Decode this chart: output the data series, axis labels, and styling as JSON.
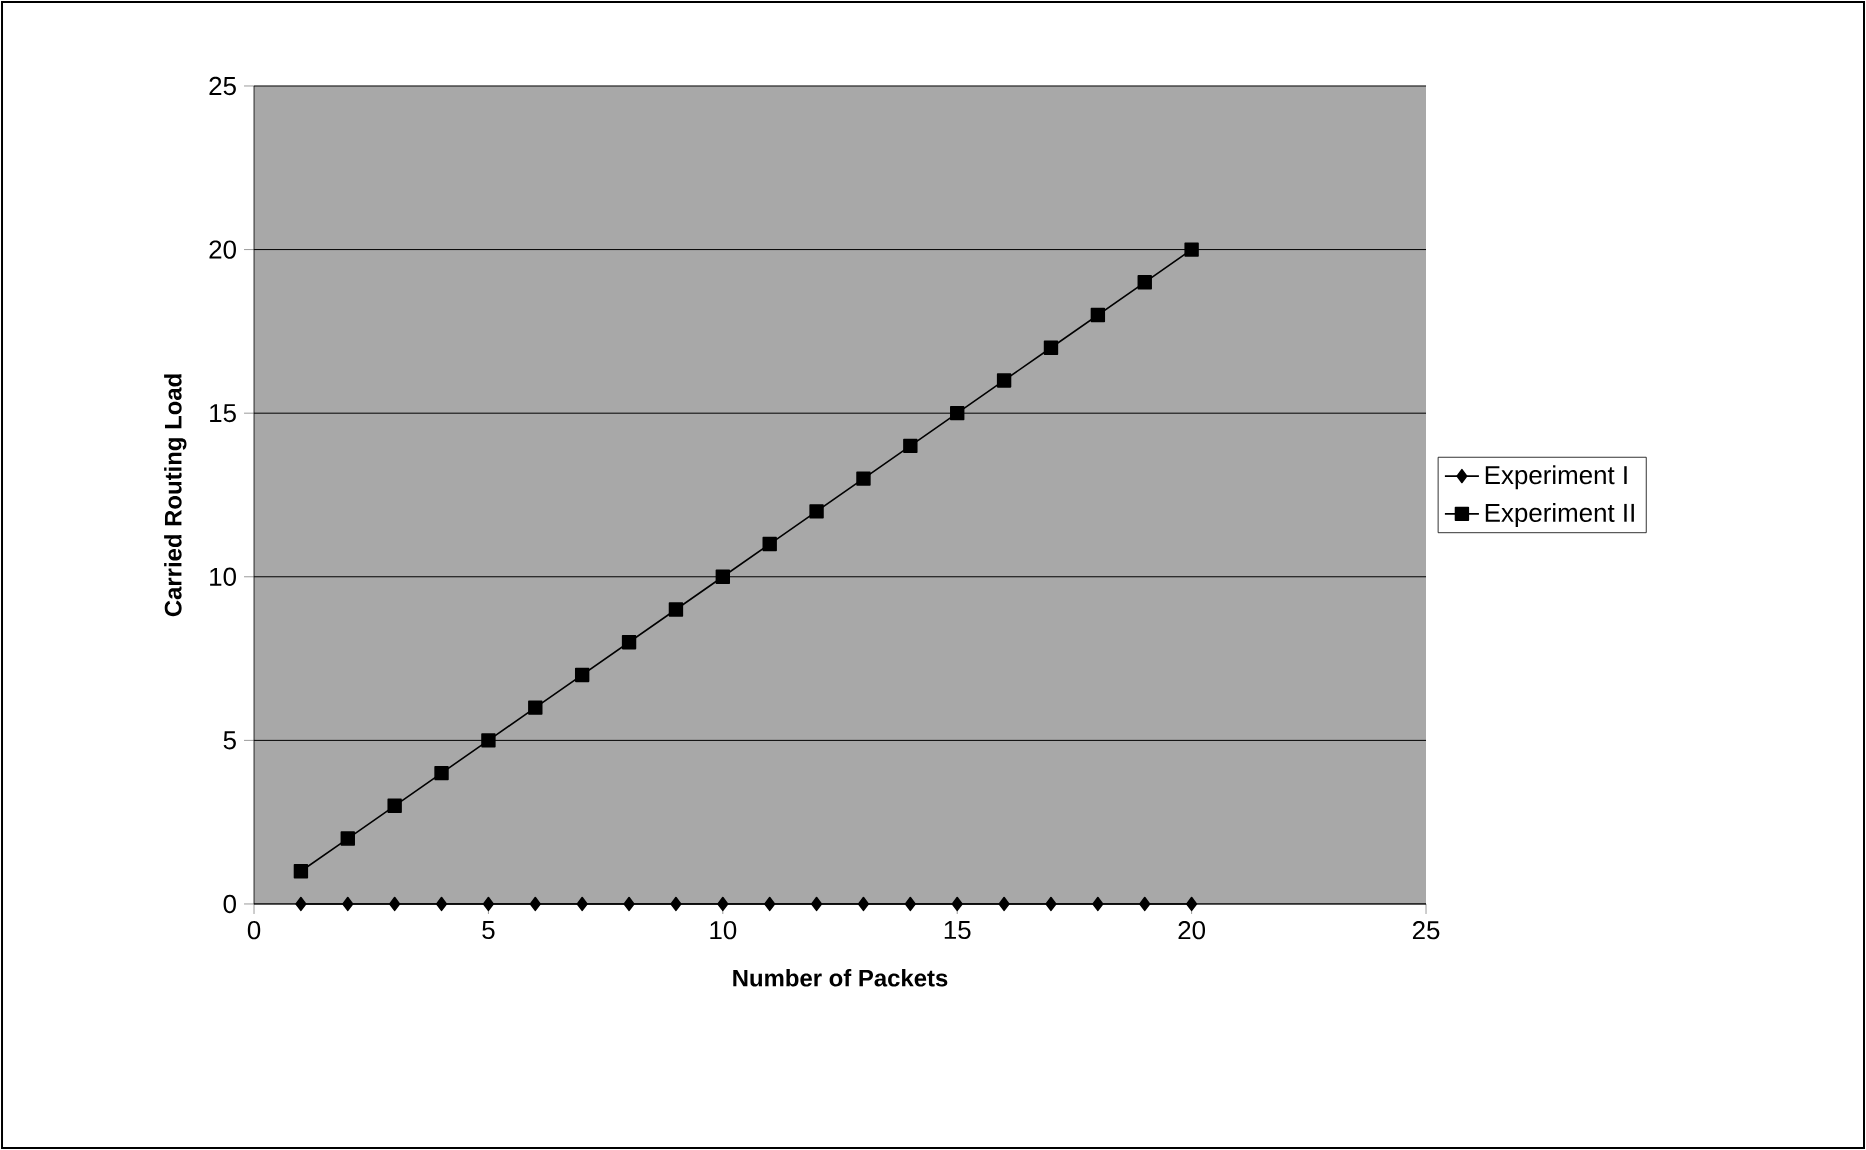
{
  "chart_data": {
    "type": "line",
    "xlabel": "Number of Packets",
    "ylabel": "Carried Routing Load",
    "x": [
      1,
      2,
      3,
      4,
      5,
      6,
      7,
      8,
      9,
      10,
      11,
      12,
      13,
      14,
      15,
      16,
      17,
      18,
      19,
      20
    ],
    "series": [
      {
        "name": "Experiment I",
        "color": "#000000",
        "marker": "diamond",
        "values": [
          0,
          0,
          0,
          0,
          0,
          0,
          0,
          0,
          0,
          0,
          0,
          0,
          0,
          0,
          0,
          0,
          0,
          0,
          0,
          0
        ]
      },
      {
        "name": "Experiment II",
        "color": "#000000",
        "marker": "square",
        "values": [
          1,
          2,
          3,
          4,
          5,
          6,
          7,
          8,
          9,
          10,
          11,
          12,
          13,
          14,
          15,
          16,
          17,
          18,
          19,
          20
        ]
      }
    ],
    "xlim": [
      0,
      25
    ],
    "ylim": [
      0,
      25
    ],
    "xticks": [
      0,
      5,
      10,
      15,
      20,
      25
    ],
    "yticks": [
      0,
      5,
      10,
      15,
      20,
      25
    ],
    "grid": "y",
    "legend": "right",
    "line_style": "solid"
  }
}
